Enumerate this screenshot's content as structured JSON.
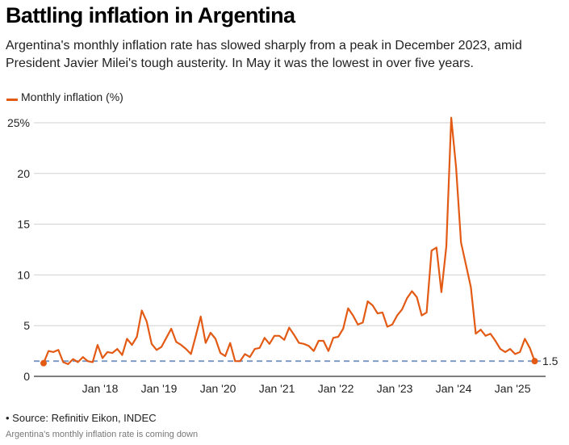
{
  "header": {
    "title": "Battling inflation in Argentina",
    "subtitle": "Argentina's monthly inflation rate has slowed sharply from a peak in December 2023, amid President Javier Milei's tough austerity. In May it was the lowest in over five years."
  },
  "legend": {
    "label": "Monthly inflation (%)",
    "color": "#e35a14"
  },
  "footer": {
    "source": "• Source: Refinitiv Eikon, INDEC",
    "caption": "Argentina's monthly inflation rate is coming down"
  },
  "chart_data": {
    "type": "line",
    "title": "Battling inflation in Argentina",
    "xlabel": "",
    "ylabel": "Monthly inflation (%)",
    "ylim": [
      0,
      25
    ],
    "yticks": [
      0,
      5,
      10,
      15,
      20,
      25
    ],
    "ytick_labels": [
      "0",
      "5",
      "10",
      "15",
      "20",
      "25%"
    ],
    "xticks": [
      "2018-01",
      "2019-01",
      "2020-01",
      "2021-01",
      "2022-01",
      "2023-01",
      "2024-01",
      "2025-01"
    ],
    "xtick_labels": [
      "Jan '18",
      "Jan '19",
      "Jan '20",
      "Jan '21",
      "Jan '22",
      "Jan '23",
      "Jan '24",
      "Jan '25"
    ],
    "x_start": "2017-01",
    "x_end": "2025-05",
    "grid": true,
    "legend_position": "top-left",
    "reference_line": {
      "value": 1.5,
      "label": "1.5",
      "style": "dashed",
      "color": "#7f9cc7"
    },
    "series": [
      {
        "name": "Monthly inflation (%)",
        "color": "#e35a14",
        "values": [
          1.3,
          2.5,
          2.4,
          2.6,
          1.4,
          1.2,
          1.7,
          1.4,
          1.9,
          1.5,
          1.4,
          3.1,
          1.8,
          2.4,
          2.3,
          2.7,
          2.1,
          3.7,
          3.1,
          3.9,
          6.5,
          5.4,
          3.2,
          2.6,
          2.9,
          3.8,
          4.7,
          3.4,
          3.1,
          2.7,
          2.2,
          4.0,
          5.9,
          3.3,
          4.3,
          3.7,
          2.3,
          2.0,
          3.3,
          1.5,
          1.5,
          2.2,
          1.9,
          2.7,
          2.8,
          3.8,
          3.2,
          4.0,
          4.0,
          3.6,
          4.8,
          4.1,
          3.3,
          3.2,
          3.0,
          2.5,
          3.5,
          3.5,
          2.5,
          3.8,
          3.9,
          4.7,
          6.7,
          6.0,
          5.1,
          5.3,
          7.4,
          7.0,
          6.2,
          6.3,
          4.9,
          5.1,
          6.0,
          6.6,
          7.7,
          8.4,
          7.8,
          6.0,
          6.3,
          12.4,
          12.7,
          8.3,
          12.8,
          25.5,
          20.6,
          13.2,
          11.0,
          8.8,
          4.2,
          4.6,
          4.0,
          4.2,
          3.5,
          2.7,
          2.4,
          2.7,
          2.2,
          2.4,
          3.7,
          2.8,
          1.5
        ]
      }
    ],
    "end_label": "1.5"
  }
}
